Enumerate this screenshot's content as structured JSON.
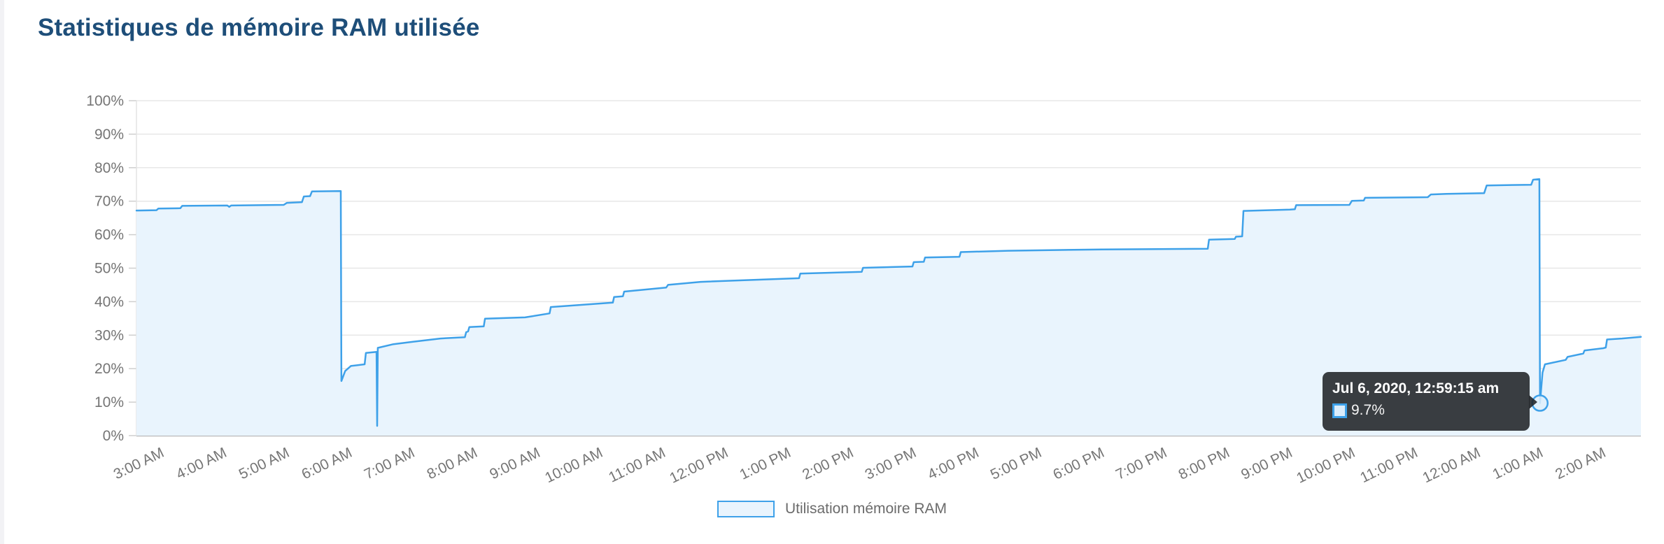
{
  "page": {
    "title": "Statistiques de mémoire RAM utilisée"
  },
  "chart_data": {
    "type": "area",
    "title": "Statistiques de mémoire RAM utilisée",
    "xlabel": "",
    "ylabel": "",
    "x_axis": {
      "kind": "time",
      "range_hours": [
        2.6,
        26.6
      ],
      "tick_hours": [
        3,
        4,
        5,
        6,
        7,
        8,
        9,
        10,
        11,
        12,
        13,
        14,
        15,
        16,
        17,
        18,
        19,
        20,
        21,
        22,
        23,
        24,
        25,
        26
      ],
      "tick_labels": [
        "3:00 AM",
        "4:00 AM",
        "5:00 AM",
        "6:00 AM",
        "7:00 AM",
        "8:00 AM",
        "9:00 AM",
        "10:00 AM",
        "11:00 AM",
        "12:00 PM",
        "1:00 PM",
        "2:00 PM",
        "3:00 PM",
        "4:00 PM",
        "5:00 PM",
        "6:00 PM",
        "7:00 PM",
        "8:00 PM",
        "9:00 PM",
        "10:00 PM",
        "11:00 PM",
        "12:00 AM",
        "1:00 AM",
        "2:00 AM"
      ]
    },
    "y_axis": {
      "range": [
        0,
        100
      ],
      "tick_values": [
        0,
        10,
        20,
        30,
        40,
        50,
        60,
        70,
        80,
        90,
        100
      ],
      "tick_labels": [
        "0%",
        "10%",
        "20%",
        "30%",
        "40%",
        "50%",
        "60%",
        "70%",
        "80%",
        "90%",
        "100%"
      ]
    },
    "grid": true,
    "legend_position": "bottom",
    "series": [
      {
        "name": "Utilisation mémoire RAM",
        "unit": "%",
        "points": [
          [
            2.6,
            67.2
          ],
          [
            2.92,
            67.3
          ],
          [
            2.95,
            67.8
          ],
          [
            3.3,
            67.9
          ],
          [
            3.33,
            68.6
          ],
          [
            4.05,
            68.7
          ],
          [
            4.08,
            68.3
          ],
          [
            4.11,
            68.7
          ],
          [
            4.95,
            68.9
          ],
          [
            5.0,
            69.5
          ],
          [
            5.24,
            69.7
          ],
          [
            5.27,
            71.4
          ],
          [
            5.37,
            71.5
          ],
          [
            5.4,
            72.9
          ],
          [
            5.86,
            73.0
          ],
          [
            5.87,
            16.3
          ],
          [
            5.93,
            19.3
          ],
          [
            6.02,
            20.8
          ],
          [
            6.24,
            21.3
          ],
          [
            6.26,
            24.7
          ],
          [
            6.43,
            25.0
          ],
          [
            6.44,
            2.9
          ],
          [
            6.45,
            26.2
          ],
          [
            6.7,
            27.3
          ],
          [
            7.0,
            28.0
          ],
          [
            7.45,
            29.0
          ],
          [
            7.84,
            29.4
          ],
          [
            7.86,
            30.9
          ],
          [
            7.89,
            31.1
          ],
          [
            7.91,
            32.4
          ],
          [
            8.14,
            32.6
          ],
          [
            8.16,
            34.9
          ],
          [
            8.8,
            35.3
          ],
          [
            9.19,
            36.5
          ],
          [
            9.21,
            38.4
          ],
          [
            10.2,
            39.7
          ],
          [
            10.22,
            41.4
          ],
          [
            10.36,
            41.6
          ],
          [
            10.38,
            43.0
          ],
          [
            11.05,
            44.2
          ],
          [
            11.08,
            45.0
          ],
          [
            11.6,
            45.9
          ],
          [
            12.6,
            46.6
          ],
          [
            13.17,
            47.0
          ],
          [
            13.19,
            48.4
          ],
          [
            14.17,
            48.9
          ],
          [
            14.19,
            50.1
          ],
          [
            14.98,
            50.5
          ],
          [
            15.0,
            51.8
          ],
          [
            15.16,
            51.9
          ],
          [
            15.18,
            53.2
          ],
          [
            15.73,
            53.4
          ],
          [
            15.75,
            54.8
          ],
          [
            16.5,
            55.2
          ],
          [
            18.0,
            55.6
          ],
          [
            19.69,
            55.8
          ],
          [
            19.71,
            58.5
          ],
          [
            20.12,
            58.7
          ],
          [
            20.14,
            59.4
          ],
          [
            20.24,
            59.5
          ],
          [
            20.26,
            67.1
          ],
          [
            21.0,
            67.5
          ],
          [
            21.08,
            67.6
          ],
          [
            21.1,
            68.8
          ],
          [
            21.95,
            68.9
          ],
          [
            21.99,
            70.1
          ],
          [
            22.18,
            70.2
          ],
          [
            22.2,
            71.0
          ],
          [
            23.2,
            71.2
          ],
          [
            23.25,
            72.0
          ],
          [
            23.5,
            72.2
          ],
          [
            24.1,
            72.4
          ],
          [
            24.14,
            74.7
          ],
          [
            24.85,
            74.9
          ],
          [
            24.88,
            76.4
          ],
          [
            24.98,
            76.6
          ],
          [
            24.99,
            9.7
          ],
          [
            25.03,
            18.8
          ],
          [
            25.07,
            21.3
          ],
          [
            25.4,
            22.6
          ],
          [
            25.43,
            23.5
          ],
          [
            25.68,
            24.5
          ],
          [
            25.7,
            25.4
          ],
          [
            26.0,
            26.1
          ],
          [
            26.04,
            26.3
          ],
          [
            26.06,
            28.7
          ],
          [
            26.3,
            29.0
          ],
          [
            26.6,
            29.5
          ]
        ]
      }
    ]
  },
  "tooltip": {
    "title": "Jul 6, 2020, 12:59:15 am",
    "value_label": "9.7%",
    "point_hours": 24.99,
    "point_value": 9.7
  },
  "legend": {
    "label": "Utilisation mémoire RAM"
  },
  "colors": {
    "title_text": "#1e4e79",
    "line": "#3ea1e9",
    "area_fill": "#e9f4fd",
    "grid": "#e7e7e7",
    "tick_dash": "#cfcfcf",
    "zero_axis": "#b9b9b9",
    "plot_left_border": "#e3e3e3",
    "axis_text": "#757575",
    "tooltip_bg": "#202327"
  }
}
